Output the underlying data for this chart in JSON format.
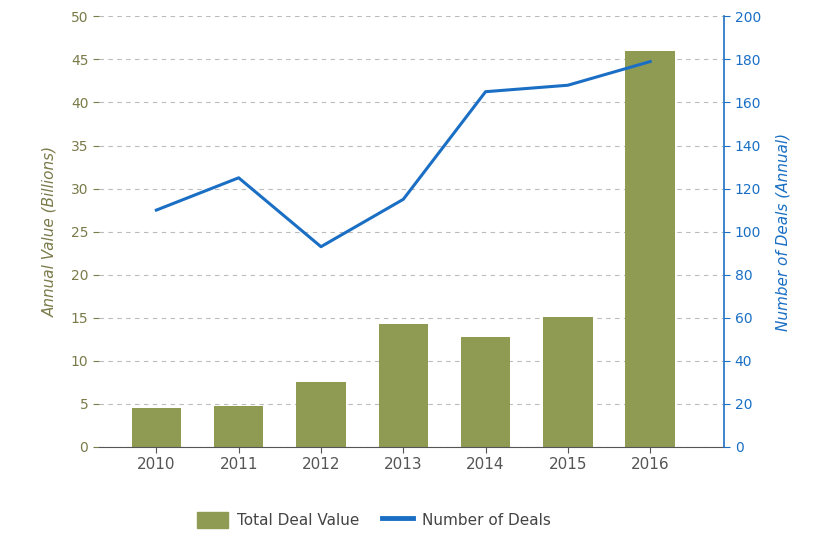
{
  "years": [
    2010,
    2011,
    2012,
    2013,
    2014,
    2015,
    2016
  ],
  "bar_values": [
    4.5,
    4.8,
    7.5,
    14.3,
    12.8,
    15.1,
    46.0
  ],
  "line_values": [
    110,
    125,
    93,
    115,
    165,
    168,
    179
  ],
  "bar_color": "#8f9a52",
  "line_color": "#1a6fc4",
  "left_ylim": [
    0,
    50
  ],
  "right_ylim": [
    0,
    200
  ],
  "left_yticks": [
    0,
    5,
    10,
    15,
    20,
    25,
    30,
    35,
    40,
    45,
    50
  ],
  "right_yticks": [
    0,
    20,
    40,
    60,
    80,
    100,
    120,
    140,
    160,
    180,
    200
  ],
  "ylabel_left": "Annual Value (Billions)",
  "ylabel_right": "Number of Deals (Annual)",
  "legend_bar_label": "Total Deal Value",
  "legend_line_label": "Number of Deals",
  "bar_width": 0.6,
  "background_color": "#ffffff",
  "grid_color": "#bbbbbb",
  "axis_label_color_left": "#7a7a4a",
  "tick_color_left": "#7a7a4a",
  "bottom_spine_color": "#555555"
}
